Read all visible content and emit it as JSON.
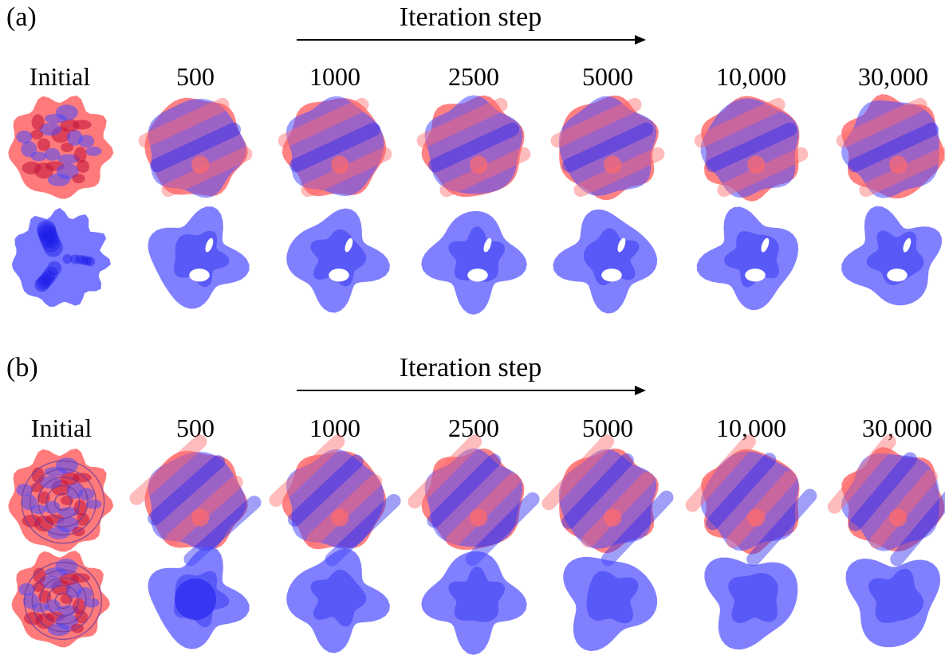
{
  "panels": [
    {
      "id": "a",
      "label": "(a)",
      "header": "Iteration step",
      "columns": [
        "Initial",
        "500",
        "1000",
        "2500",
        "5000",
        "10,000",
        "30,000"
      ],
      "rows": [
        "ball-view",
        "blue-phase-view"
      ],
      "style": "gyroid-like"
    },
    {
      "id": "b",
      "label": "(b)",
      "header": "Iteration step",
      "columns": [
        "Initial",
        "500",
        "1000",
        "2500",
        "5000",
        "10,000",
        "30,000"
      ],
      "rows": [
        "ball-view",
        "blue-phase-view"
      ],
      "style": "lamellar-like"
    }
  ],
  "colors": {
    "red_phase": "#ff6b6b",
    "blue_phase": "#4a4aff",
    "blue_phase_deep": "#2a2af0",
    "arrow": "#000000"
  }
}
